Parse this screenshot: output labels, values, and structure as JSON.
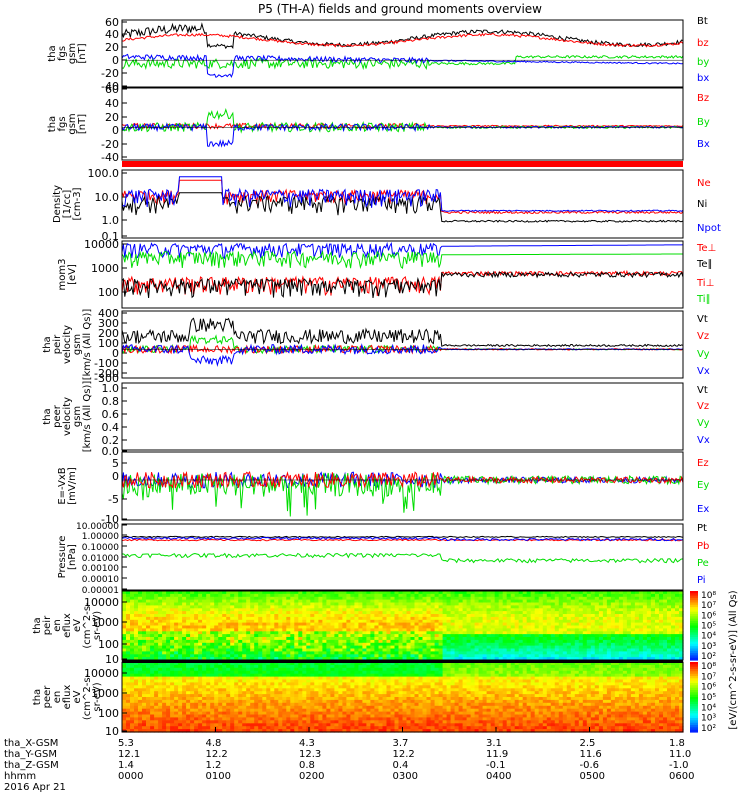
{
  "title": "P5 (TH-A) fields and ground moments overview",
  "colors": {
    "black": "#000000",
    "red": "#ff0000",
    "green": "#00dd00",
    "blue": "#0000ff"
  },
  "chart_data": [
    {
      "type": "line",
      "id": "fgs_gsm",
      "ylabel": [
        "tha",
        "fgs",
        "gsm",
        "[nT]"
      ],
      "ylim": [
        -40,
        60
      ],
      "ticks": [
        "60",
        "40",
        "20",
        "0",
        "-20",
        "-40"
      ],
      "series": [
        {
          "name": "Bt",
          "color": "black"
        },
        {
          "name": "bz",
          "color": "red"
        },
        {
          "name": "by",
          "color": "green"
        },
        {
          "name": "bx",
          "color": "blue"
        }
      ]
    },
    {
      "type": "line",
      "id": "fgs_gsm_detrend",
      "ylabel": [
        "tha",
        "fgs",
        "gsm",
        "[nT]"
      ],
      "ylim": [
        -50,
        60
      ],
      "ticks": [
        "60",
        "40",
        "20",
        "0",
        "-20",
        "-40"
      ],
      "series": [
        {
          "name": "Bz",
          "color": "red"
        },
        {
          "name": "By",
          "color": "green"
        },
        {
          "name": "Bx",
          "color": "blue"
        }
      ]
    },
    {
      "type": "line",
      "id": "density",
      "ylabel": [
        "Density",
        "[1/cc]",
        "[cm-3]"
      ],
      "scale": "log",
      "ylim": [
        0.1,
        100
      ],
      "ticks": [
        "100.0",
        "10.0",
        "1.0",
        "0.1"
      ],
      "series": [
        {
          "name": "Ne",
          "color": "red"
        },
        {
          "name": "Ni",
          "color": "black"
        },
        {
          "name": "Npot",
          "color": "blue"
        }
      ]
    },
    {
      "type": "line",
      "id": "temperature",
      "ylabel": [
        "mom3",
        "[eV]"
      ],
      "scale": "log",
      "ylim": [
        20,
        10000
      ],
      "ticks": [
        "10000",
        "1000",
        "100"
      ],
      "series": [
        {
          "name": "Te⊥",
          "color": "red"
        },
        {
          "name": "Te∥",
          "color": "black"
        },
        {
          "name": "Ti⊥",
          "color": "red"
        },
        {
          "name": "Ti∥",
          "color": "green"
        }
      ]
    },
    {
      "type": "line",
      "id": "ion_velocity",
      "ylabel": [
        "tha",
        "peir",
        "velocity",
        "gsm",
        "[km/s (All Qs)]"
      ],
      "ylim": [
        -300,
        400
      ],
      "ticks": [
        "400",
        "300",
        "200",
        "100",
        "0",
        "-100",
        "-200",
        "-300"
      ],
      "series": [
        {
          "name": "Vt",
          "color": "black"
        },
        {
          "name": "Vz",
          "color": "red"
        },
        {
          "name": "Vy",
          "color": "green"
        },
        {
          "name": "Vx",
          "color": "blue"
        }
      ]
    },
    {
      "type": "line",
      "id": "electron_velocity",
      "ylabel": [
        "tha",
        "peer",
        "velocity",
        "gsm",
        "[km/s (All Qs)]"
      ],
      "ylim": [
        0,
        1
      ],
      "ticks": [
        "1.0",
        "0.8",
        "0.6",
        "0.4",
        "0.2",
        "0.0"
      ],
      "series": [
        {
          "name": "Vt",
          "color": "black"
        },
        {
          "name": "Vz",
          "color": "red"
        },
        {
          "name": "Vy",
          "color": "green"
        },
        {
          "name": "Vx",
          "color": "blue"
        }
      ]
    },
    {
      "type": "line",
      "id": "efield",
      "ylabel": [
        "E=-VxB",
        "[mV/m]"
      ],
      "ylim": [
        -10,
        10
      ],
      "ticks": [
        "5",
        "0",
        "-5",
        "-10"
      ],
      "series": [
        {
          "name": "Ez",
          "color": "red"
        },
        {
          "name": "Ey",
          "color": "green"
        },
        {
          "name": "Ex",
          "color": "blue"
        }
      ]
    },
    {
      "type": "line",
      "id": "pressure",
      "ylabel": [
        "Pressure",
        "[nPa]"
      ],
      "scale": "log",
      "ylim": [
        1e-05,
        10
      ],
      "ticks": [
        "10.00000",
        "1.00000",
        "0.10000",
        "0.01000",
        "0.00100",
        "0.00010",
        "0.00001"
      ],
      "series": [
        {
          "name": "Pt",
          "color": "black"
        },
        {
          "name": "Pb",
          "color": "red"
        },
        {
          "name": "Pe",
          "color": "green"
        },
        {
          "name": "Pi",
          "color": "blue"
        }
      ]
    },
    {
      "type": "heatmap",
      "id": "ion_spectrogram",
      "ylabel": [
        "tha",
        "peir",
        "en",
        "eflux",
        "eV",
        "(cm^2-s-",
        "sr-eV)"
      ],
      "scale": "log",
      "ticks": [
        "10000",
        "1000",
        "100",
        "10"
      ]
    },
    {
      "type": "heatmap",
      "id": "electron_spectrogram",
      "ylabel": [
        "tha",
        "peer",
        "en",
        "eflux",
        "eV",
        "(cm^2-s-",
        "sr-eV)"
      ],
      "scale": "log",
      "ticks": [
        "10000",
        "1000",
        "100",
        "10"
      ]
    }
  ],
  "colorbar": {
    "label": "[eV/(cm^2-s-sr-eV)] (All Qs)",
    "ion_ticks": [
      "10⁸",
      "10⁷",
      "10⁶",
      "10⁵",
      "10⁴",
      "10³",
      "10²"
    ],
    "electron_ticks": [
      "10⁸",
      "10⁷",
      "10⁶",
      "10⁵",
      "10⁴",
      "10³",
      "10²"
    ]
  },
  "xaxis": {
    "row_labels": [
      "tha_X-GSM",
      "tha_Y-GSM",
      "tha_Z-GSM",
      "hhmm",
      "2016 Apr 21"
    ],
    "columns": [
      {
        "x": "5.3",
        "y": "12.1",
        "z": "1.4",
        "t": "0000"
      },
      {
        "x": "4.8",
        "y": "12.2",
        "z": "1.2",
        "t": "0100"
      },
      {
        "x": "4.3",
        "y": "12.3",
        "z": "0.8",
        "t": "0200"
      },
      {
        "x": "3.7",
        "y": "12.2",
        "z": "0.4",
        "t": "0300"
      },
      {
        "x": "3.1",
        "y": "11.9",
        "z": "-0.1",
        "t": "0400"
      },
      {
        "x": "2.5",
        "y": "11.6",
        "z": "-0.6",
        "t": "0500"
      },
      {
        "x": "1.8",
        "y": "11.0",
        "z": "-1.0",
        "t": "0600"
      }
    ]
  }
}
